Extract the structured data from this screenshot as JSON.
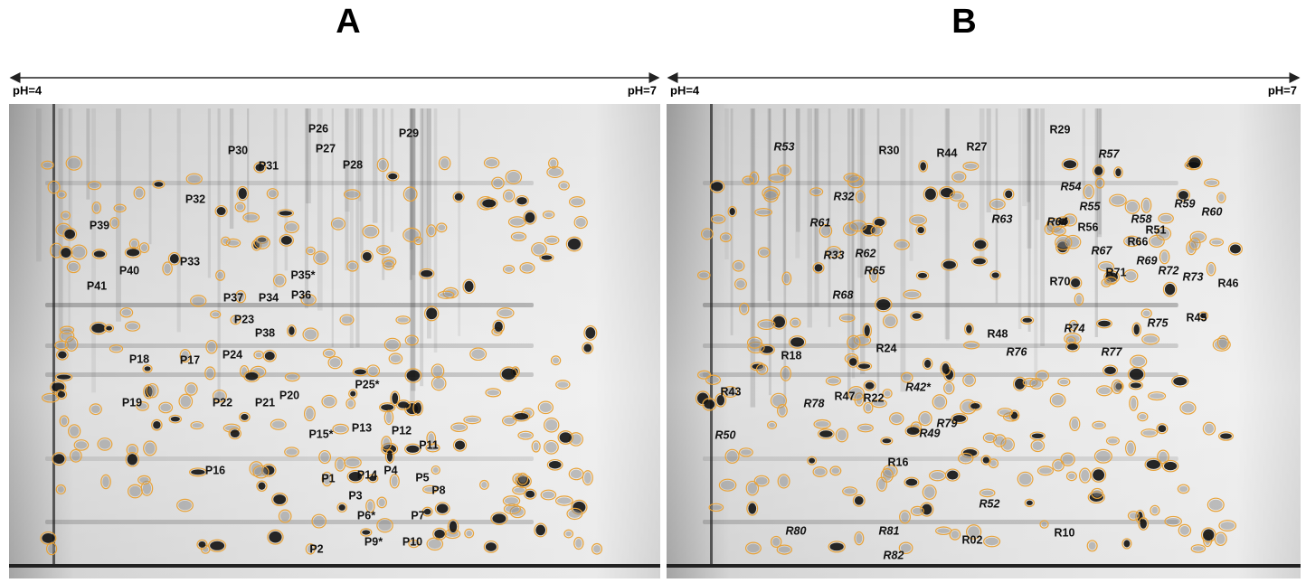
{
  "panels": [
    {
      "label": "A",
      "ph_left": "pH=4",
      "ph_right": "pH=7",
      "spots": [
        "P26",
        "P27",
        "P29",
        "P30",
        "P31",
        "P28",
        "P32",
        "P39",
        "P40",
        "P33",
        "P35*",
        "P37",
        "P34",
        "P36",
        "P41",
        "P23",
        "P38",
        "P24",
        "P18",
        "P17",
        "P22",
        "P21",
        "P20",
        "P25*",
        "P19",
        "P15*",
        "P13",
        "P12",
        "P11",
        "P16",
        "P14",
        "P1",
        "P4",
        "P5",
        "P3",
        "P8",
        "P6*",
        "P7",
        "P2",
        "P9*",
        "P10"
      ]
    },
    {
      "label": "B",
      "ph_left": "pH=4",
      "ph_right": "pH=7",
      "spots": [
        "R53",
        "R30",
        "R44",
        "R27",
        "R29",
        "R57",
        "R54",
        "R32",
        "R55",
        "R58",
        "R59",
        "R60",
        "R61",
        "R63",
        "R64",
        "R56",
        "R51",
        "R66",
        "R33",
        "R62",
        "R67",
        "R69",
        "R72",
        "R65",
        "R71",
        "R73",
        "R46",
        "R70",
        "R68",
        "R75",
        "R48",
        "R74",
        "R45",
        "R76",
        "R77",
        "R24",
        "R18",
        "R43",
        "R78",
        "R47",
        "R22",
        "R42*",
        "R79",
        "R49",
        "R50",
        "R16",
        "R52",
        "R81",
        "R80",
        "R02",
        "R10",
        "R82"
      ]
    }
  ]
}
